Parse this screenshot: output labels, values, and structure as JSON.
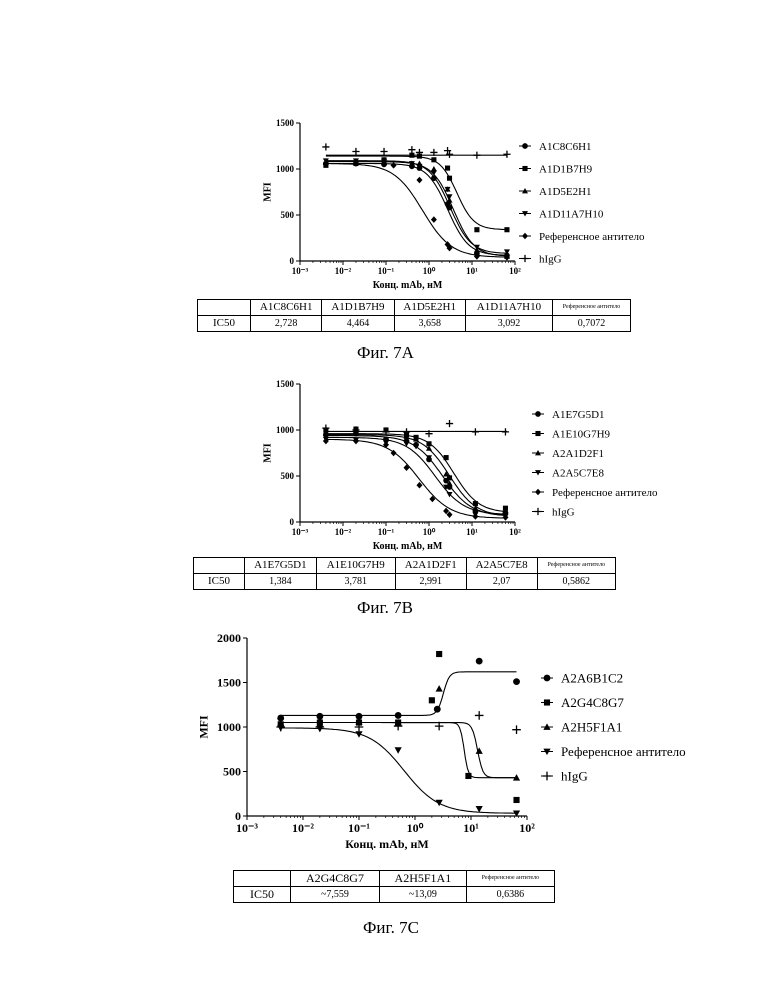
{
  "panels": [
    {
      "caption": "Фиг. 7А",
      "chart_data": {
        "type": "scatter",
        "xlabel": "Конц. mAb, нМ",
        "ylabel": "MFI",
        "xscale": "log",
        "xlim": [
          0.001,
          100
        ],
        "ylim": [
          0,
          1500
        ],
        "yticks": [
          "0",
          "500",
          "1000",
          "1500"
        ],
        "xticks": [
          "10⁻³",
          "10⁻²",
          "10⁻¹",
          "10⁰",
          "10¹",
          "10²"
        ],
        "legend_position": "right",
        "series": [
          {
            "name": "A1C8C6H1",
            "marker": "circle",
            "top": 1060,
            "bottom": 60,
            "ic50": 2.728,
            "hill": 1.8,
            "x": [
              0.004,
              0.02,
              0.09,
              0.4,
              0.6,
              1.3,
              2.7,
              3,
              13,
              65
            ],
            "y": [
              1060,
              1060,
              1050,
              1030,
              1010,
              900,
              620,
              580,
              80,
              60
            ]
          },
          {
            "name": "A1D1B7H9",
            "marker": "square",
            "top": 1140,
            "bottom": 340,
            "ic50": 4.464,
            "hill": 2.2,
            "x": [
              0.004,
              0.02,
              0.09,
              0.4,
              0.6,
              1.3,
              2.7,
              3,
              13,
              65
            ],
            "y": [
              1040,
              1060,
              1100,
              1150,
              1140,
              1100,
              1010,
              900,
              340,
              340
            ]
          },
          {
            "name": "A1D5E2H1",
            "marker": "triangle-up",
            "top": 1080,
            "bottom": 50,
            "ic50": 3.658,
            "hill": 1.8,
            "x": [
              0.004,
              0.02,
              0.09,
              0.4,
              0.6,
              1.3,
              2.7,
              3,
              13,
              65
            ],
            "y": [
              1070,
              1070,
              1070,
              1060,
              1060,
              1000,
              780,
              660,
              120,
              50
            ]
          },
          {
            "name": "A1D11A7H10",
            "marker": "triangle-down",
            "top": 1090,
            "bottom": 80,
            "ic50": 3.092,
            "hill": 1.8,
            "x": [
              0.004,
              0.02,
              0.09,
              0.4,
              0.6,
              1.3,
              2.7,
              3,
              13,
              65
            ],
            "y": [
              1090,
              1090,
              1080,
              1060,
              1030,
              960,
              780,
              700,
              150,
              100
            ]
          },
          {
            "name": "Референсное антитело",
            "marker": "diamond",
            "top": 1060,
            "bottom": 40,
            "ic50": 0.7072,
            "hill": 1.3,
            "x": [
              0.004,
              0.02,
              0.09,
              0.15,
              0.4,
              0.6,
              1.3,
              2.7,
              3,
              13,
              65
            ],
            "y": [
              1060,
              1060,
              1060,
              1040,
              1030,
              880,
              450,
              180,
              140,
              50,
              40
            ]
          },
          {
            "name": "hIgG",
            "marker": "plus",
            "flat": 1150,
            "x": [
              0.004,
              0.02,
              0.09,
              0.4,
              0.6,
              1.3,
              2.7,
              3,
              13,
              65
            ],
            "y": [
              1240,
              1190,
              1190,
              1210,
              1180,
              1180,
              1200,
              1160,
              1150,
              1160
            ]
          }
        ]
      },
      "table": {
        "headers": [
          "A1C8C6H1",
          "A1D1B7H9",
          "A1D5E2H1",
          "A1D11A7H10",
          "Референсное антитело"
        ],
        "row_label": "IC50",
        "values": [
          "2,728",
          "4,464",
          "3,658",
          "3,092",
          "0,7072"
        ]
      }
    },
    {
      "caption": "Фиг. 7B",
      "chart_data": {
        "type": "scatter",
        "xlabel": "Конц. mAb, нМ",
        "ylabel": "MFI",
        "xscale": "log",
        "xlim": [
          0.001,
          100
        ],
        "ylim": [
          0,
          1500
        ],
        "yticks": [
          "0",
          "500",
          "1000",
          "1500"
        ],
        "xticks": [
          "10⁻³",
          "10⁻²",
          "10⁻¹",
          "10⁰",
          "10¹",
          "10²"
        ],
        "legend_position": "right",
        "series": [
          {
            "name": "A1E7G5D1",
            "marker": "circle",
            "top": 920,
            "bottom": 80,
            "ic50": 1.384,
            "hill": 1.3,
            "x": [
              0.004,
              0.02,
              0.1,
              0.3,
              0.5,
              1,
              2.5,
              3,
              12,
              60
            ],
            "y": [
              950,
              960,
              900,
              880,
              840,
              680,
              450,
              380,
              120,
              100
            ]
          },
          {
            "name": "A1E10G7H9",
            "marker": "square",
            "top": 960,
            "bottom": 100,
            "ic50": 3.781,
            "hill": 1.5,
            "x": [
              0.004,
              0.02,
              0.1,
              0.3,
              0.5,
              1,
              2.5,
              3,
              12,
              60
            ],
            "y": [
              1000,
              1010,
              1000,
              950,
              920,
              850,
              700,
              480,
              200,
              150
            ]
          },
          {
            "name": "A2A1D2F1",
            "marker": "triangle-up",
            "top": 950,
            "bottom": 60,
            "ic50": 2.991,
            "hill": 1.4,
            "x": [
              0.004,
              0.02,
              0.1,
              0.3,
              0.5,
              1,
              2.5,
              3,
              12,
              60
            ],
            "y": [
              960,
              1000,
              1000,
              930,
              900,
              800,
              520,
              420,
              150,
              120
            ]
          },
          {
            "name": "A2A5C7E8",
            "marker": "triangle-down",
            "top": 940,
            "bottom": 60,
            "ic50": 2.07,
            "hill": 1.3,
            "x": [
              0.004,
              0.02,
              0.1,
              0.3,
              0.5,
              1,
              2.5,
              3,
              12,
              60
            ],
            "y": [
              900,
              890,
              860,
              850,
              820,
              700,
              380,
              300,
              80,
              60
            ]
          },
          {
            "name": "Референсное антитело",
            "marker": "diamond",
            "top": 900,
            "bottom": 40,
            "ic50": 0.5862,
            "hill": 1.2,
            "x": [
              0.004,
              0.02,
              0.1,
              0.15,
              0.3,
              0.6,
              1.2,
              2.5,
              3,
              12,
              60
            ],
            "y": [
              880,
              880,
              840,
              750,
              590,
              400,
              250,
              120,
              80,
              60,
              50
            ]
          },
          {
            "name": "hIgG",
            "marker": "plus",
            "flat": 985,
            "x": [
              0.004,
              0.02,
              0.1,
              0.3,
              1,
              3,
              12,
              60
            ],
            "y": [
              1020,
              1000,
              980,
              980,
              960,
              1070,
              980,
              980
            ]
          }
        ]
      },
      "table": {
        "headers": [
          "A1E7G5D1",
          "A1E10G7H9",
          "A2A1D2F1",
          "A2A5C7E8",
          "Референсное антитело"
        ],
        "row_label": "IC50",
        "values": [
          "1,384",
          "3,781",
          "2,991",
          "2,07",
          "0,5862"
        ]
      }
    },
    {
      "caption": "Фиг. 7C",
      "chart_data": {
        "type": "scatter",
        "xlabel": "Конц. mAb, нМ",
        "ylabel": "MFI",
        "xscale": "log",
        "xlim": [
          0.001,
          100
        ],
        "ylim": [
          0,
          2000
        ],
        "yticks": [
          "0",
          "500",
          "1000",
          "1500",
          "2000"
        ],
        "xticks": [
          "10⁻³",
          "10⁻²",
          "10⁻¹",
          "10⁰",
          "10¹",
          "10²"
        ],
        "legend_position": "right",
        "series": [
          {
            "name": "A2A6B1C2",
            "marker": "circle",
            "top": 1130,
            "bottom": 1620,
            "ic50": 3.2,
            "hill": 8,
            "x": [
              0.004,
              0.02,
              0.1,
              0.5,
              2.5,
              14,
              65
            ],
            "y": [
              1100,
              1120,
              1120,
              1130,
              1200,
              1740,
              1510
            ]
          },
          {
            "name": "A2G4C8G7",
            "marker": "square",
            "top": 1050,
            "bottom": 430,
            "ic50": 7.559,
            "hill": 12,
            "x": [
              0.004,
              0.02,
              0.1,
              0.5,
              2,
              2.7,
              9,
              65
            ],
            "y": [
              1030,
              1050,
              1050,
              1050,
              1300,
              1820,
              450,
              180
            ]
          },
          {
            "name": "A2H5F1A1",
            "marker": "triangle-up",
            "top": 1050,
            "bottom": 430,
            "ic50": 13.09,
            "hill": 9,
            "x": [
              0.004,
              0.02,
              0.1,
              0.5,
              2.7,
              14,
              65
            ],
            "y": [
              1030,
              1030,
              1060,
              1050,
              1430,
              730,
              430
            ]
          },
          {
            "name": "Референсное антитело",
            "marker": "triangle-down",
            "top": 990,
            "bottom": 30,
            "ic50": 0.6386,
            "hill": 1.4,
            "x": [
              0.004,
              0.02,
              0.1,
              0.5,
              2.7,
              14,
              65
            ],
            "y": [
              990,
              980,
              920,
              740,
              150,
              80,
              30
            ]
          },
          {
            "name": "hIgG",
            "marker": "plus",
            "flat": null,
            "x": [
              0.004,
              0.02,
              0.1,
              0.5,
              2.7,
              14,
              65
            ],
            "y": [
              1000,
              1000,
              1000,
              1010,
              1010,
              1130,
              970
            ]
          }
        ]
      },
      "table": {
        "headers": [
          "A2G4C8G7",
          "A2H5F1A1",
          "Референсное антитело"
        ],
        "row_label": "IC50",
        "values": [
          "~7,559",
          "~13,09",
          "0,6386"
        ]
      }
    }
  ]
}
